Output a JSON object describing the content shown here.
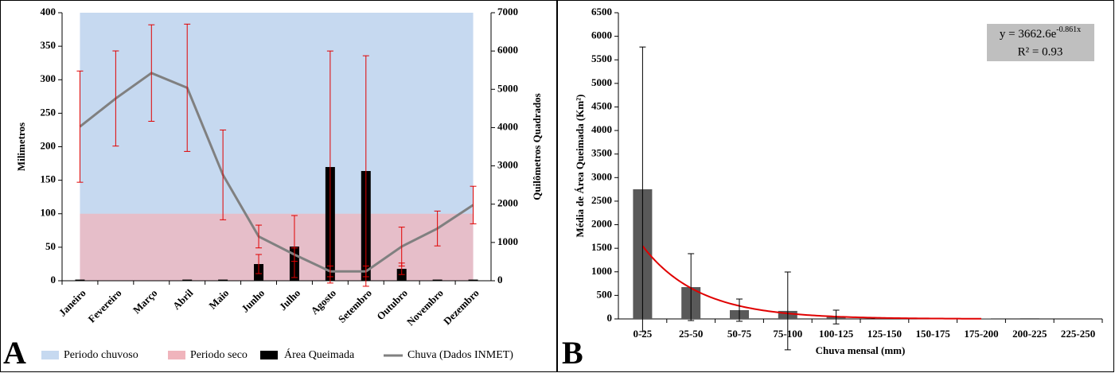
{
  "chart_data": [
    {
      "type": "bar_line",
      "panel": "A",
      "ylabel": "Milimetros",
      "y2label": "Quilômetros  Quadrados",
      "categories": [
        "Janeiro",
        "Fevereiro",
        "Março",
        "Abril",
        "Maio",
        "Junho",
        "Julho",
        "Agosto",
        "Setembro",
        "Outubro",
        "Novembro",
        "Dezembro"
      ],
      "bands": [
        {
          "name": "Periodo chuvoso",
          "color": "#c6d9f0",
          "from": 0,
          "to": 400
        },
        {
          "name": "Periodo seco",
          "color": "#f0b4bc",
          "from": 0,
          "to": 100
        }
      ],
      "series": [
        {
          "name": "Área Queimada",
          "kind": "bar",
          "axis": "y2",
          "color": "#000000",
          "error_color": "#e00000",
          "values": [
            30,
            0,
            0,
            30,
            30,
            436,
            893,
            2970,
            2866,
            312,
            30,
            30
          ],
          "errors": [
            0,
            0,
            0,
            0,
            0,
            250,
            810,
            3030,
            3010,
            150,
            0,
            0
          ]
        },
        {
          "name": "Chuva (Dados INMET)",
          "kind": "line",
          "axis": "y",
          "color": "#808080",
          "error_color": "#e00000",
          "values": [
            230,
            272,
            310,
            288,
            158,
            66,
            39,
            14,
            14,
            51,
            78,
            113
          ],
          "errors": [
            83,
            71,
            72,
            95,
            67,
            17,
            10,
            8,
            8,
            29,
            26,
            28
          ]
        }
      ],
      "ylim": [
        0,
        400
      ],
      "yticks": [
        0,
        50,
        100,
        150,
        200,
        250,
        300,
        350,
        400
      ],
      "y2lim": [
        0,
        7000
      ],
      "y2ticks": [
        0,
        1000,
        2000,
        3000,
        4000,
        5000,
        6000,
        7000
      ]
    },
    {
      "type": "bar",
      "panel": "B",
      "xlabel": "Chuva mensal (mm)",
      "ylabel": "Média de Área Queimada (Km²)",
      "categories": [
        "0-25",
        "25-50",
        "50-75",
        "75-100",
        "100-125",
        "125-150",
        "150-175",
        "175-200",
        "200-225",
        "225-250"
      ],
      "values": [
        2752,
        675,
        186,
        170,
        40,
        20,
        10,
        5,
        15,
        0
      ],
      "errors": [
        3020,
        710,
        236,
        826,
        146,
        0,
        0,
        0,
        0,
        0
      ],
      "color": "#595959",
      "error_color": "#000000",
      "trendline": {
        "a": 3662.6,
        "b": -0.861,
        "color": "#e00000"
      },
      "annotation": [
        "y = 3662.6e",
        "-0.861x",
        "R² = 0.93"
      ],
      "ylim": [
        0,
        6500
      ],
      "yticks": [
        0,
        500,
        1000,
        1500,
        2000,
        2500,
        3000,
        3500,
        4000,
        4500,
        5000,
        5500,
        6000,
        6500
      ]
    }
  ]
}
